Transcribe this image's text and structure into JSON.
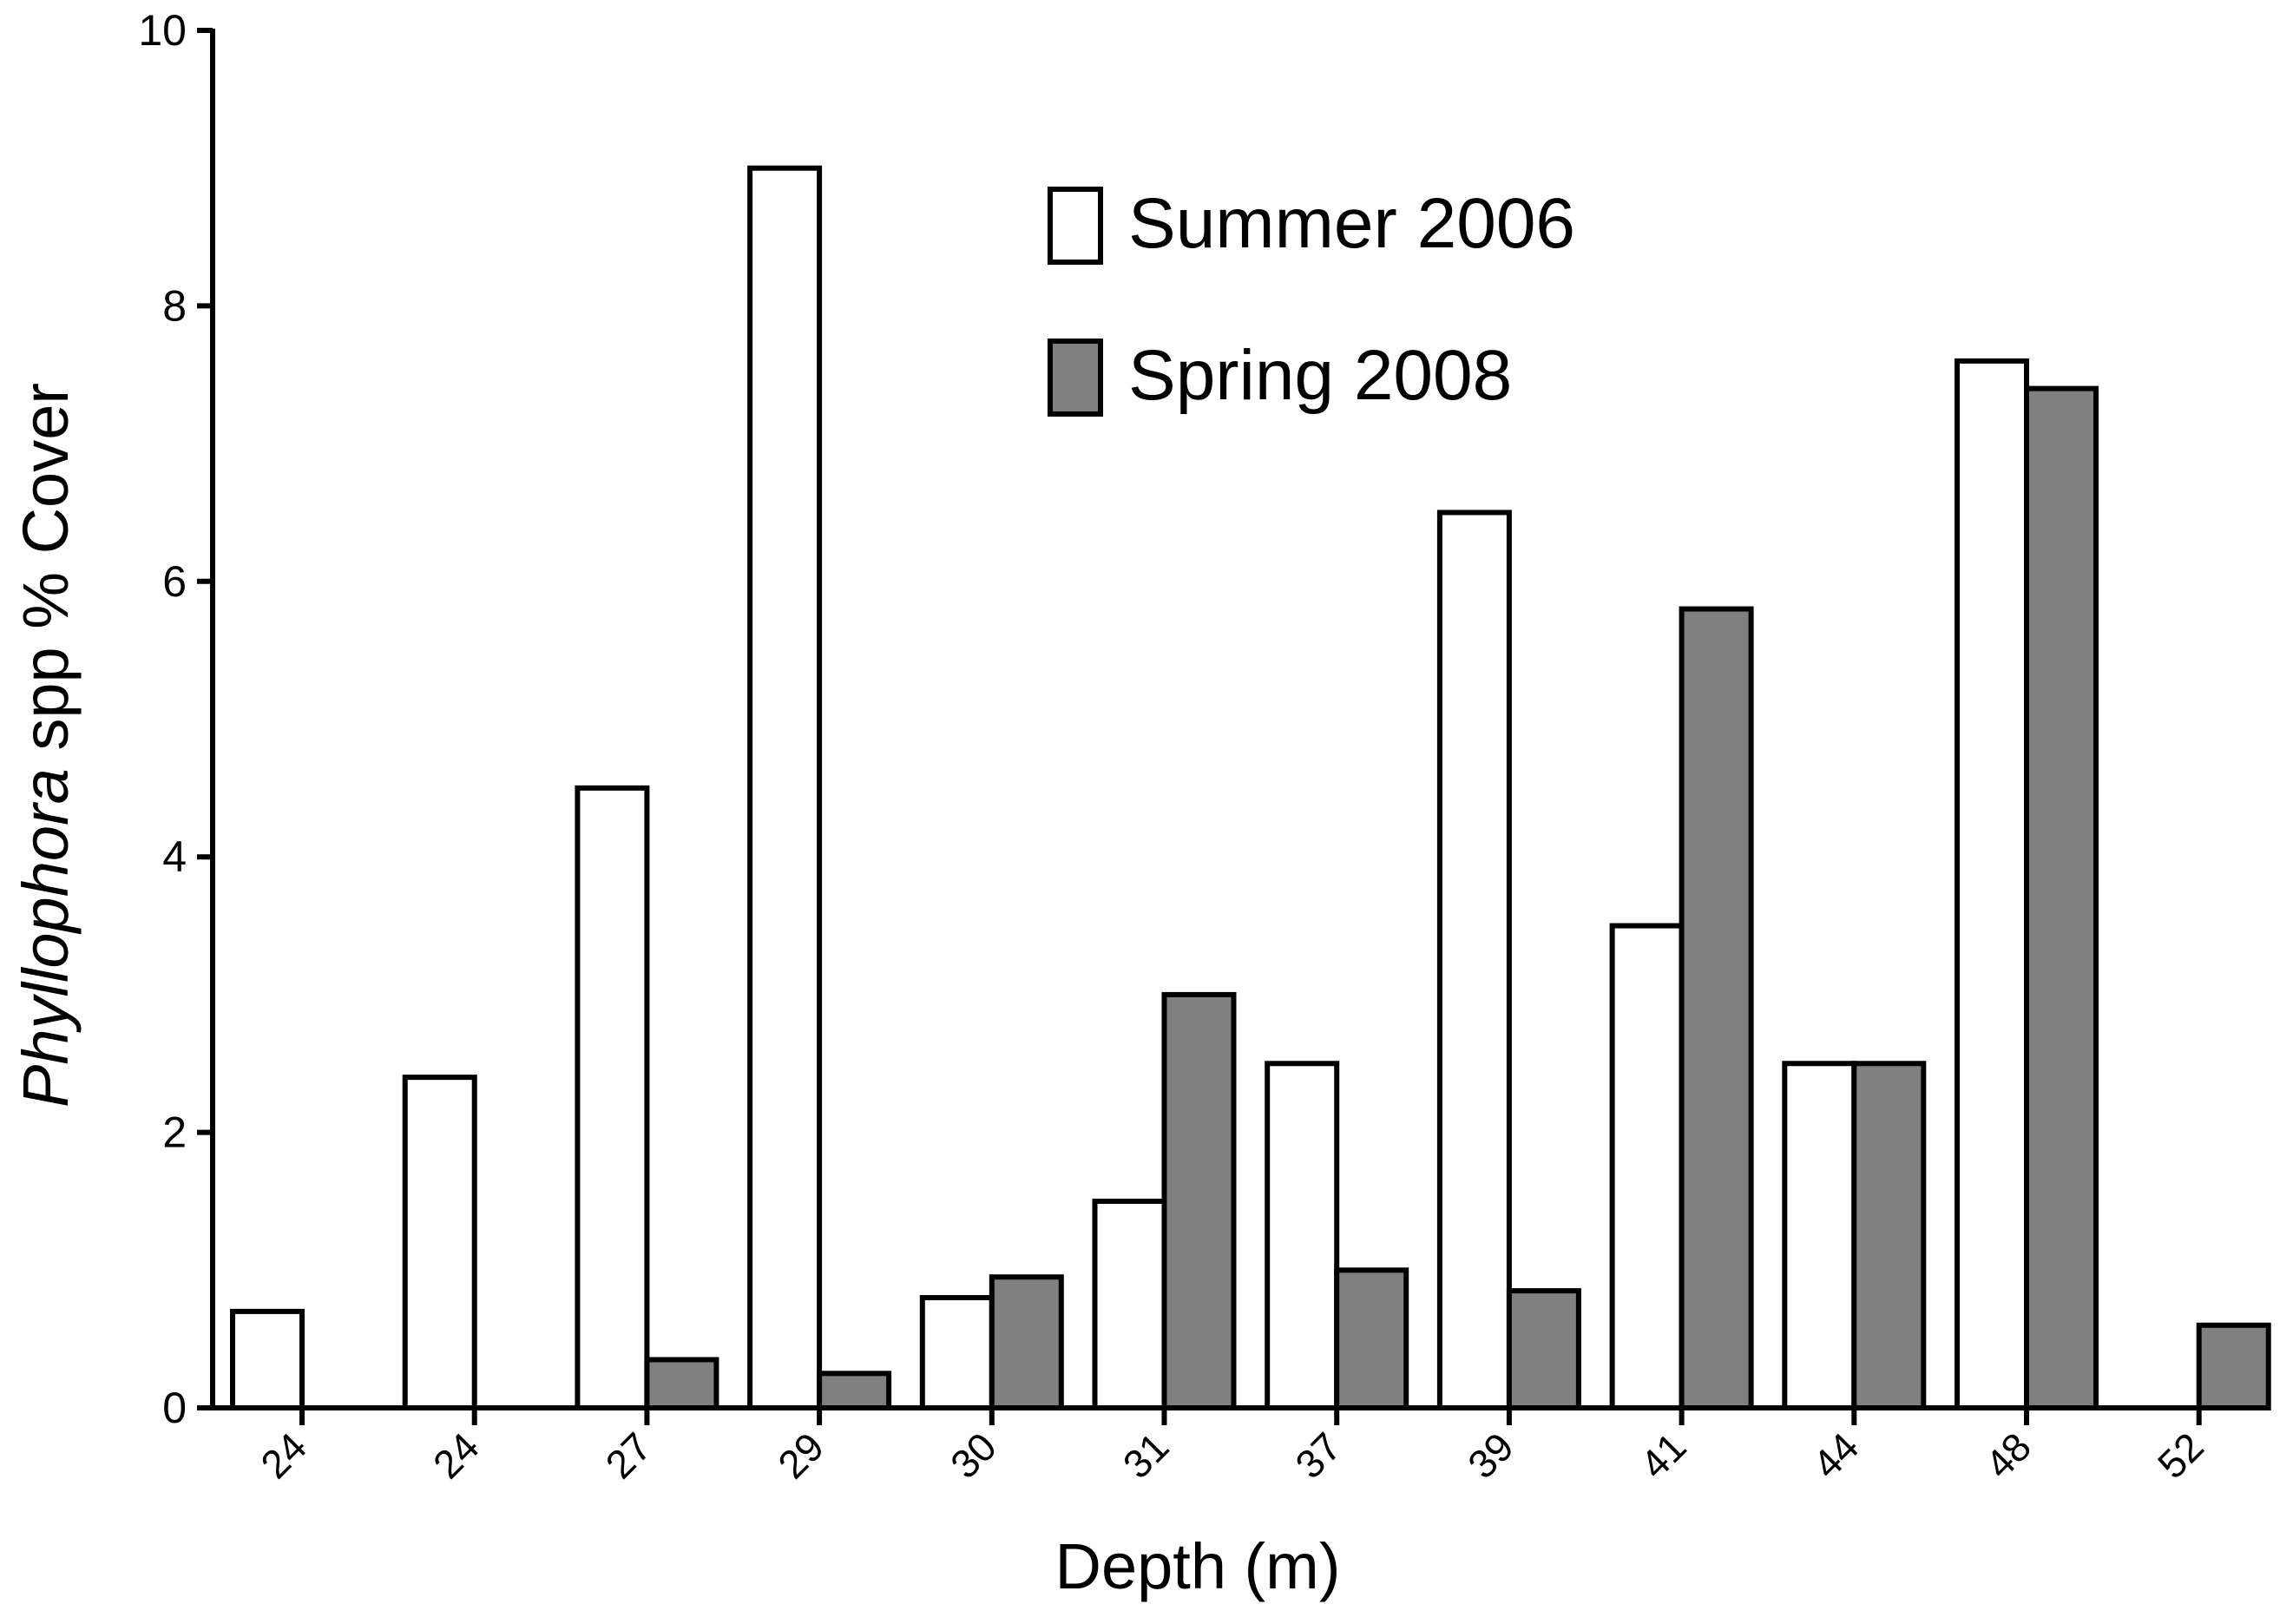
{
  "chart_data": {
    "type": "bar",
    "categories": [
      "24",
      "24",
      "27",
      "29",
      "30",
      "31",
      "37",
      "39",
      "41",
      "44",
      "48",
      "52"
    ],
    "series": [
      {
        "name": "Summer 2006",
        "values": [
          0.7,
          2.4,
          4.5,
          9.0,
          0.8,
          1.5,
          2.5,
          6.5,
          3.5,
          2.5,
          7.6,
          0
        ]
      },
      {
        "name": "Spring 2008",
        "values": [
          0,
          0,
          0.35,
          0.25,
          0.95,
          3.0,
          1.0,
          0.85,
          5.8,
          2.5,
          7.4,
          0.6
        ]
      }
    ],
    "xlabel": "Depth (m)",
    "ylabel_italic": "Phyllophora",
    "ylabel_rest": " spp % Cover",
    "ylim": [
      0,
      10
    ],
    "yticks": [
      "0",
      "2",
      "4",
      "6",
      "8",
      "10"
    ],
    "grid": false,
    "legend_position": "top-center",
    "colors": {
      "Summer 2006": "#ffffff",
      "Spring 2008": "#808080",
      "stroke": "#000000"
    }
  }
}
